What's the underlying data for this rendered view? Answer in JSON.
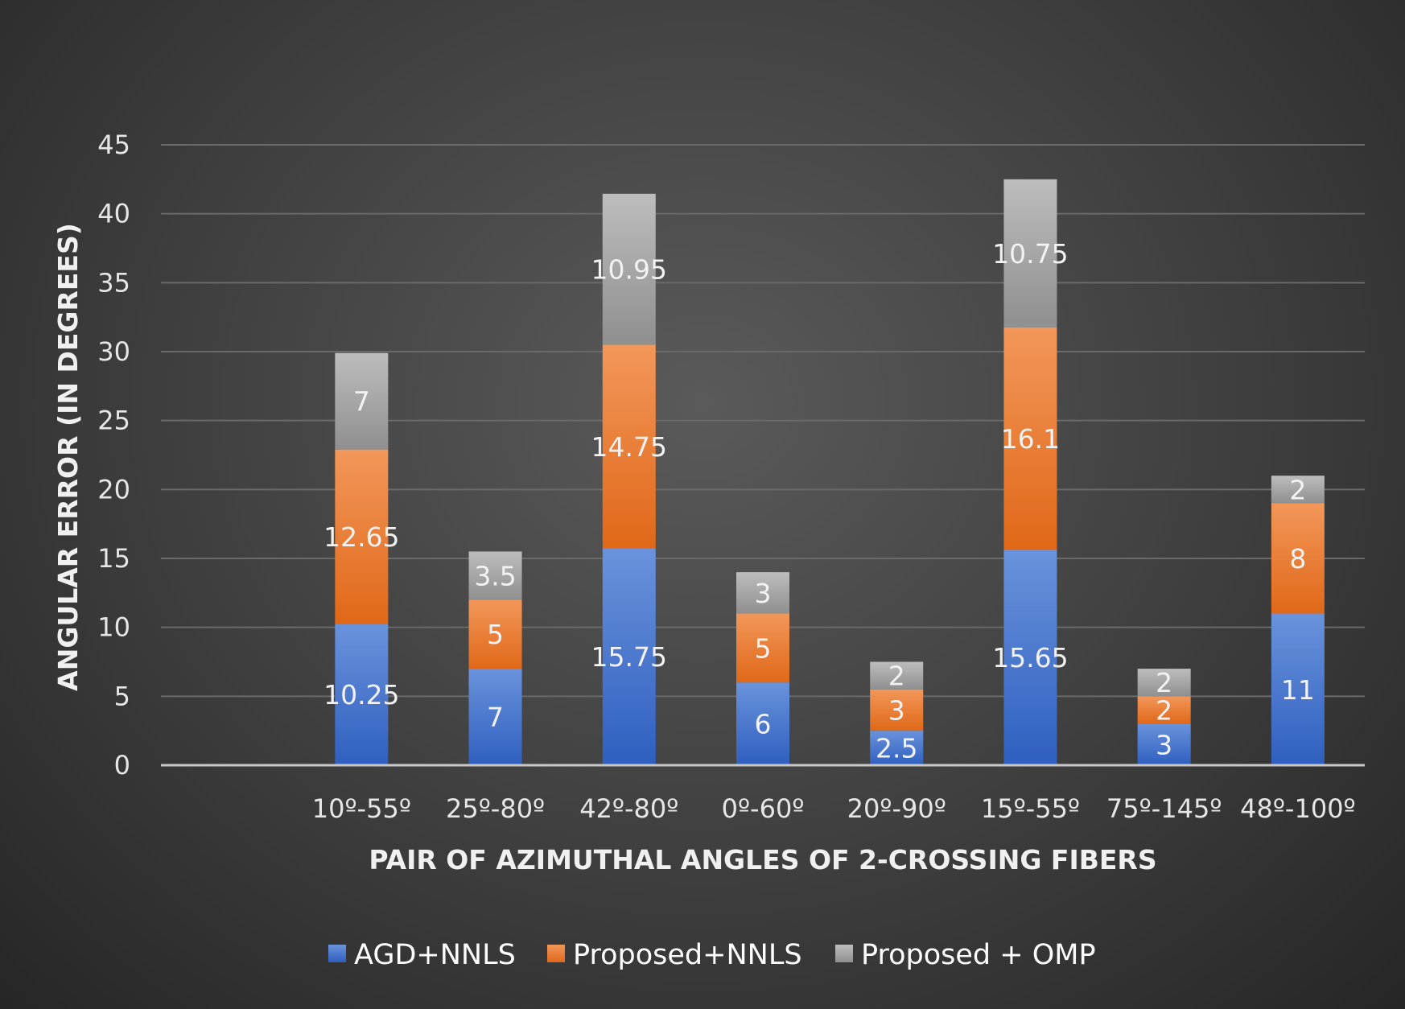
{
  "chart_data": {
    "type": "bar",
    "stacked": true,
    "title": "",
    "xlabel": "PAIR OF AZIMUTHAL ANGLES OF 2-CROSSING FIBERS",
    "ylabel": "ANGULAR ERROR (IN DEGREES)",
    "ylim": [
      0,
      45
    ],
    "yticks": [
      0,
      5,
      10,
      15,
      20,
      25,
      30,
      35,
      40,
      45
    ],
    "grid": true,
    "legend_position": "bottom",
    "categories": [
      "",
      "10º-55º",
      "25º-80º",
      "42º-80º",
      "0º-60º",
      "20º-90º",
      "15º-55º",
      "75º-145º",
      "48º-100º"
    ],
    "series": [
      {
        "name": "AGD+NNLS",
        "color": "#4472c4",
        "values": [
          null,
          10.25,
          7,
          15.75,
          6,
          2.5,
          15.65,
          3,
          11
        ]
      },
      {
        "name": "Proposed+NNLS",
        "color": "#ed7d31",
        "values": [
          null,
          12.65,
          5,
          14.75,
          5,
          3,
          16.1,
          2,
          8
        ]
      },
      {
        "name": "Proposed + OMP",
        "color": "#a5a5a5",
        "values": [
          null,
          7,
          3.5,
          10.95,
          3,
          2,
          10.75,
          2,
          2
        ]
      }
    ]
  }
}
